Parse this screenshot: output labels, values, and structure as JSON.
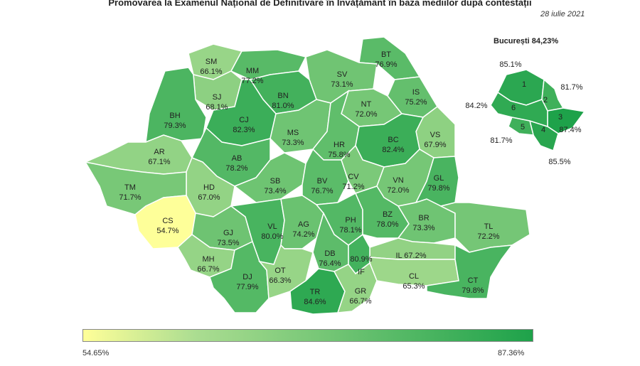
{
  "title": "Promovarea la Examenul Național de Definitivare în Învățământ în baza mediilor după contestații",
  "date": "28 iulie 2021",
  "bucuresti_title": "București 84,23%",
  "legend": {
    "min": "54.65%",
    "max": "87.36%",
    "min_value": 54.65,
    "max_value": 87.36,
    "color_low": "#ffff99",
    "color_high": "#1ea24a"
  },
  "counties": [
    {
      "code": "SM",
      "pct": "66.1%",
      "value": 66.1
    },
    {
      "code": "MM",
      "pct": "77.2%",
      "value": 77.2
    },
    {
      "code": "BT",
      "pct": "76.9%",
      "value": 76.9
    },
    {
      "code": "SV",
      "pct": "73.1%",
      "value": 73.1
    },
    {
      "code": "SJ",
      "pct": "68.1%",
      "value": 68.1
    },
    {
      "code": "BN",
      "pct": "81.0%",
      "value": 81.0
    },
    {
      "code": "IS",
      "pct": "75.2%",
      "value": 75.2
    },
    {
      "code": "NT",
      "pct": "72.0%",
      "value": 72.0
    },
    {
      "code": "BH",
      "pct": "79.3%",
      "value": 79.3
    },
    {
      "code": "CJ",
      "pct": "82.3%",
      "value": 82.3
    },
    {
      "code": "MS",
      "pct": "73.3%",
      "value": 73.3
    },
    {
      "code": "HR",
      "pct": "75.8%",
      "value": 75.8
    },
    {
      "code": "VS",
      "pct": "67.9%",
      "value": 67.9
    },
    {
      "code": "AR",
      "pct": "67.1%",
      "value": 67.1
    },
    {
      "code": "AB",
      "pct": "78.2%",
      "value": 78.2
    },
    {
      "code": "BC",
      "pct": "82.4%",
      "value": 82.4
    },
    {
      "code": "HD",
      "pct": "67.0%",
      "value": 67.0
    },
    {
      "code": "SB",
      "pct": "73.4%",
      "value": 73.4
    },
    {
      "code": "BV",
      "pct": "76.7%",
      "value": 76.7
    },
    {
      "code": "CV",
      "pct": "71.2%",
      "value": 71.2
    },
    {
      "code": "VN",
      "pct": "72.0%",
      "value": 72.0
    },
    {
      "code": "GL",
      "pct": "79.8%",
      "value": 79.8
    },
    {
      "code": "TM",
      "pct": "71.7%",
      "value": 71.7
    },
    {
      "code": "CS",
      "pct": "54.7%",
      "value": 54.7
    },
    {
      "code": "GJ",
      "pct": "73.5%",
      "value": 73.5
    },
    {
      "code": "VL",
      "pct": "80.0%",
      "value": 80.0
    },
    {
      "code": "AG",
      "pct": "74.2%",
      "value": 74.2
    },
    {
      "code": "PH",
      "pct": "78.1%",
      "value": 78.1
    },
    {
      "code": "BZ",
      "pct": "78.0%",
      "value": 78.0
    },
    {
      "code": "BR",
      "pct": "73.3%",
      "value": 73.3
    },
    {
      "code": "TL",
      "pct": "72.2%",
      "value": 72.2
    },
    {
      "code": "DB",
      "pct": "76.4%",
      "value": 76.4
    },
    {
      "code": "IL",
      "pct": "67.2%",
      "value": 67.2
    },
    {
      "code": "MH",
      "pct": "66.7%",
      "value": 66.7
    },
    {
      "code": "DJ",
      "pct": "77.9%",
      "value": 77.9
    },
    {
      "code": "OT",
      "pct": "66.3%",
      "value": 66.3
    },
    {
      "code": "TR",
      "pct": "84.6%",
      "value": 84.6
    },
    {
      "code": "GR",
      "pct": "66.7%",
      "value": 66.7
    },
    {
      "code": "IF",
      "pct": "80.9%",
      "value": 80.9
    },
    {
      "code": "CL",
      "pct": "65.3%",
      "value": 65.3
    },
    {
      "code": "CT",
      "pct": "79.8%",
      "value": 79.8
    }
  ],
  "sectors": [
    {
      "code": "1",
      "pct": "85.1%",
      "value": 85.1
    },
    {
      "code": "2",
      "pct": "81.7%",
      "value": 81.7
    },
    {
      "code": "3",
      "pct": "87.4%",
      "value": 87.4
    },
    {
      "code": "4",
      "pct": "85.5%",
      "value": 85.5
    },
    {
      "code": "5",
      "pct": "81.7%",
      "value": 81.7
    },
    {
      "code": "6",
      "pct": "84.2%",
      "value": 84.2
    }
  ]
}
